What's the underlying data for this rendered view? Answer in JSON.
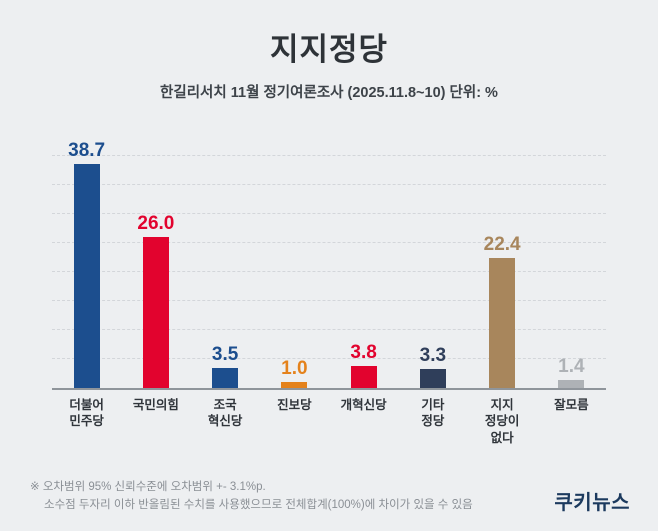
{
  "title": "지지정당",
  "subtitle": "한길리서치 11월 정기여론조사 (2025.11.8~10) 단위: %",
  "footnote_line1": "※ 오차범위 95% 신뢰수준에 오차범위 +- 3.1%p.",
  "footnote_line2": "소수점 두자리 이하 반올림된 수치를 사용했으므로 전체합계(100%)에 차이가 있을 수 있음",
  "logo_text": "쿠키뉴스",
  "chart_data": {
    "type": "bar",
    "title": "지지정당",
    "xlabel": "",
    "ylabel": "",
    "unit": "%",
    "categories": [
      "더불어\n민주당",
      "국민의힘",
      "조국\n혁신당",
      "진보당",
      "개혁신당",
      "기타\n정당",
      "지지\n정당이\n없다",
      "잘모름"
    ],
    "values": [
      38.7,
      26.0,
      3.5,
      1.0,
      3.8,
      3.3,
      22.4,
      1.4
    ],
    "value_labels": [
      "38.7",
      "26.0",
      "3.5",
      "1.0",
      "3.8",
      "3.3",
      "22.4",
      "1.4"
    ],
    "bar_colors": [
      "#1c4e8e",
      "#e2032e",
      "#1c4e8e",
      "#e4821c",
      "#e2032e",
      "#2f3e5a",
      "#a8865c",
      "#aeb2b6"
    ],
    "ylim": [
      0,
      40
    ],
    "grid": true,
    "grid_step": 5,
    "legend": "none"
  }
}
